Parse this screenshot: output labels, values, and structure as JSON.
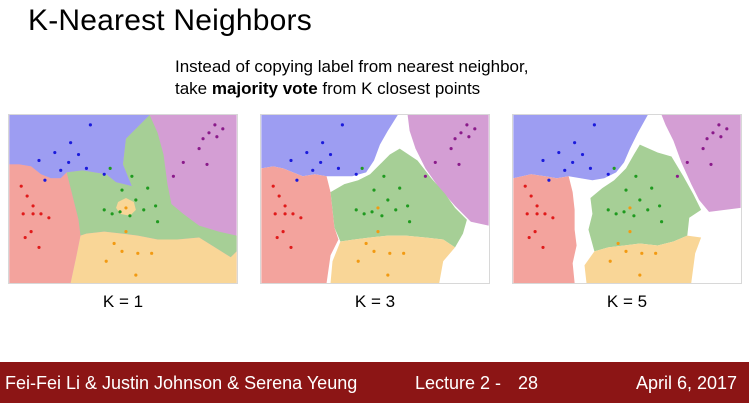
{
  "slide": {
    "title": "K-Nearest Neighbors",
    "subtitle_line1": "Instead of copying label from nearest neighbor,",
    "subtitle_line2_pre": "take ",
    "subtitle_line2_bold": "majority vote",
    "subtitle_line2_post": " from K closest points"
  },
  "panels": [
    {
      "label": "K = 1"
    },
    {
      "label": "K = 3"
    },
    {
      "label": "K = 5"
    }
  ],
  "colors": {
    "region_blue": "#9d9df2",
    "region_purple": "#d49ed4",
    "region_red": "#f3a39d",
    "region_green": "#a6cf96",
    "region_orange": "#f9d697",
    "point_blue": "#1a1adb",
    "point_purple": "#8a1a8a",
    "point_red": "#e01a1a",
    "point_green": "#1f9a1f",
    "point_orange": "#f29a12",
    "footer_bg": "#8c1515"
  },
  "footer": {
    "authors": "Fei-Fei Li & Justin Johnson & Serena Yeung",
    "lecture": "Lecture 2 -",
    "page": "28",
    "date": "April 6, 2017"
  }
}
